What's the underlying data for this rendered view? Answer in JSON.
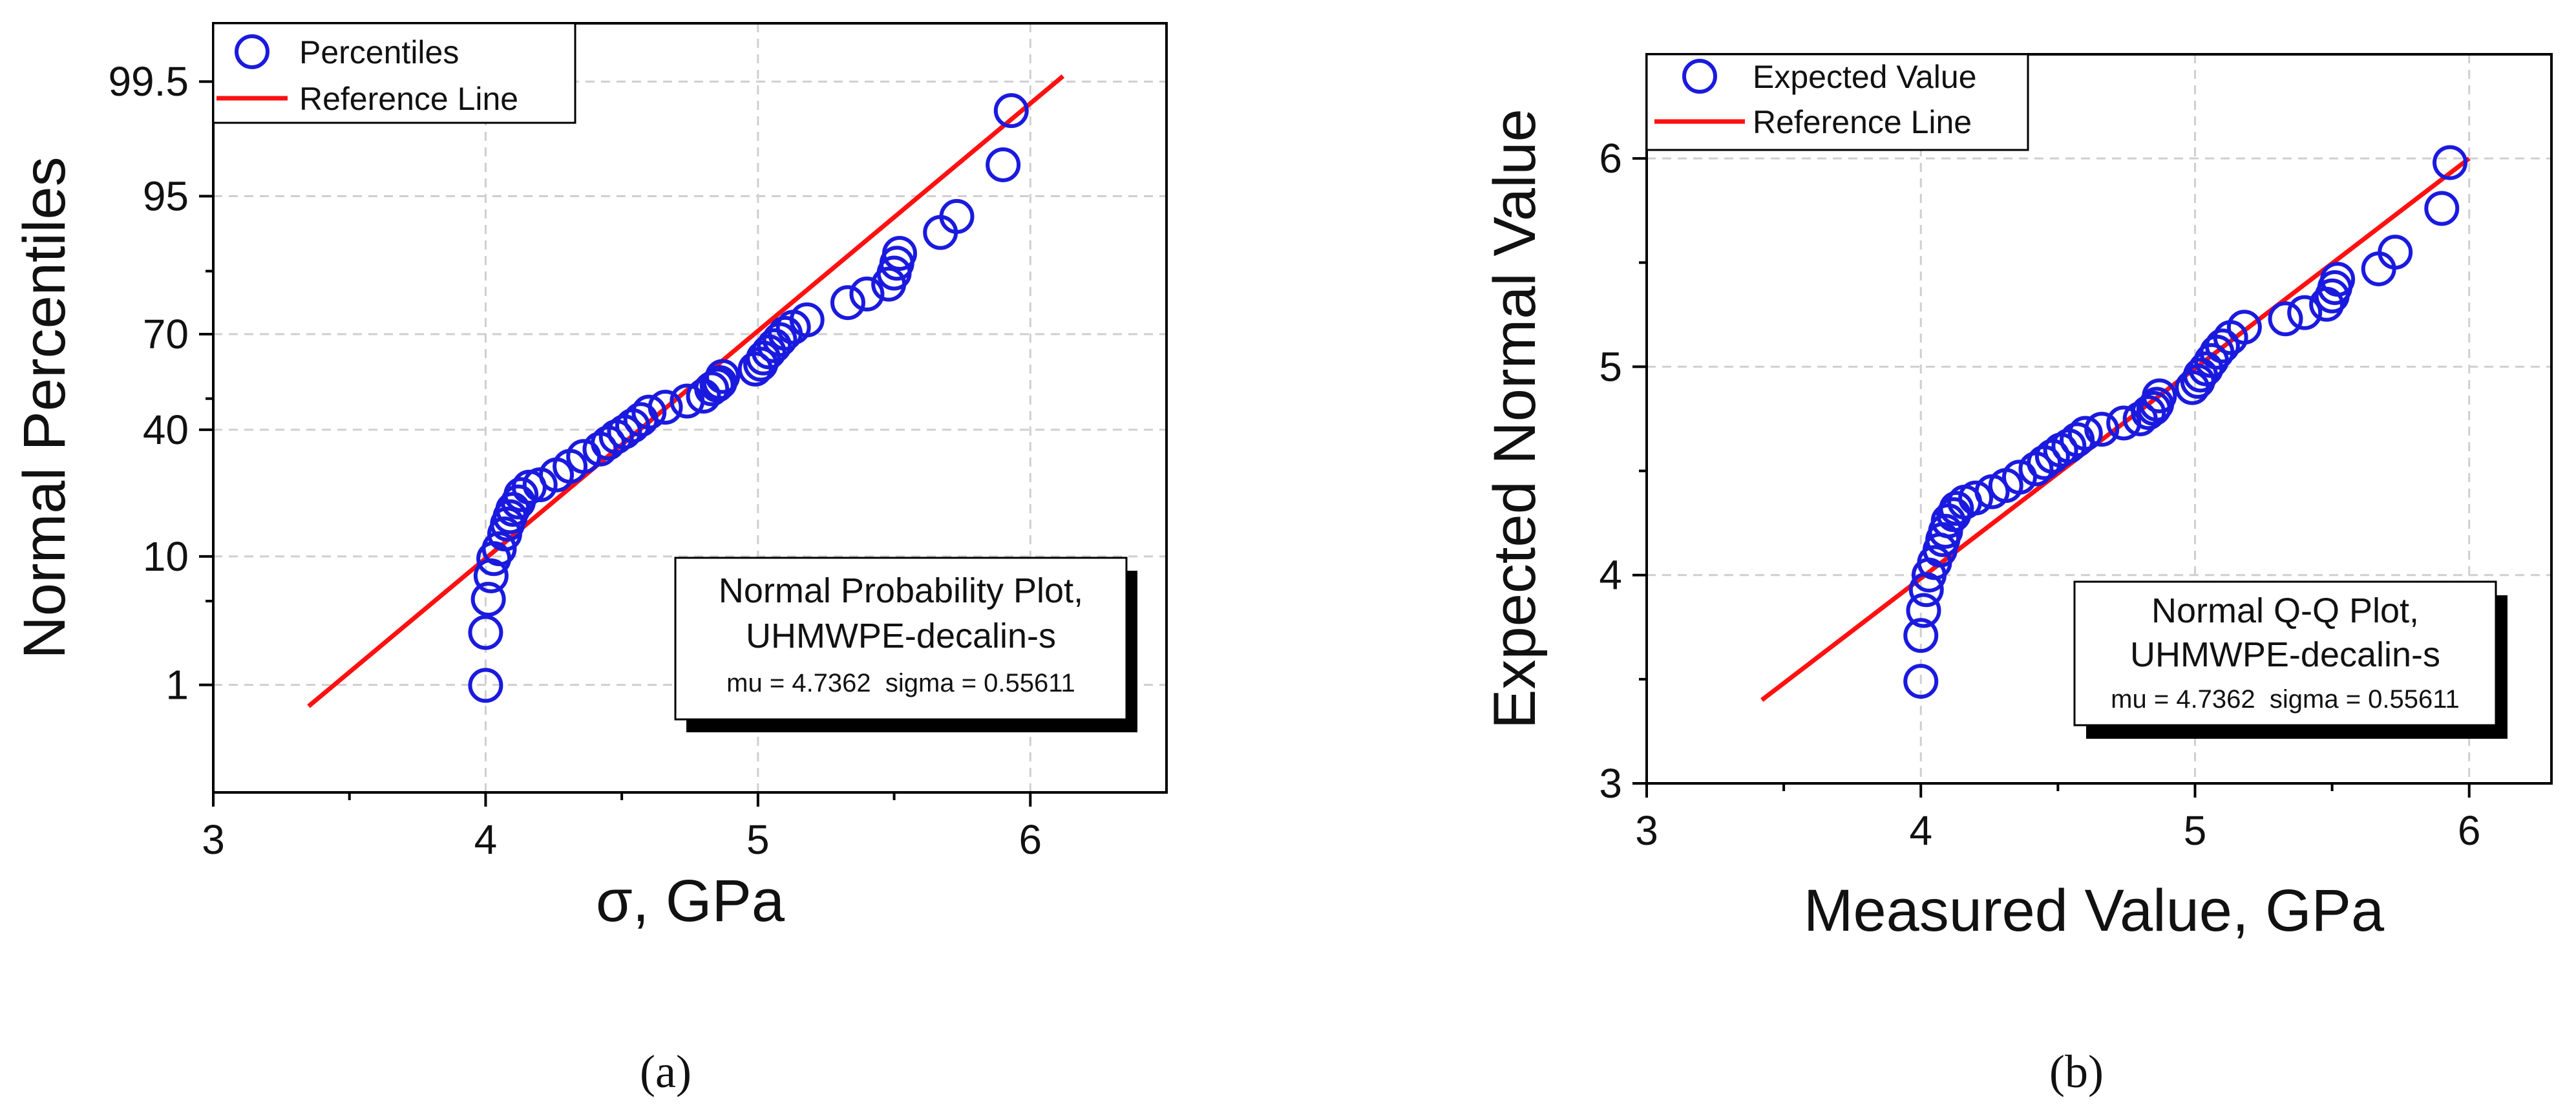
{
  "figure": {
    "panel_a_label": "(a)",
    "panel_b_label": "(b)"
  },
  "chart_data": [
    {
      "type": "scatter",
      "title": "Normal Probability Plot,",
      "subtitle": "UHMWPE-decalin-s",
      "stats": "mu = 4.7362  sigma = 0.55611",
      "xlabel": "σ, GPa",
      "ylabel": "Normal Percentiles",
      "xlim": [
        3,
        6.5
      ],
      "ylim_z": [
        -3.2,
        3.05
      ],
      "x_ticks": [
        3,
        4,
        5,
        6
      ],
      "x_tick_labels": [
        "3",
        "4",
        "5",
        "6"
      ],
      "y_ticks_z": [
        -2.326,
        -1.282,
        -0.253,
        0.524,
        1.645,
        2.576
      ],
      "y_tick_labels": [
        "1",
        "10",
        "40",
        "70",
        "95",
        "99.5"
      ],
      "grid": true,
      "legend": [
        {
          "label": "Percentiles",
          "marker": "circle",
          "color": "#1a1adf"
        },
        {
          "label": "Reference Line",
          "marker": "line",
          "color": "#ff1010"
        }
      ],
      "legend_position": "top-left",
      "series": [
        {
          "name": "Percentiles",
          "x": [
            4.0,
            4.0,
            4.01,
            4.02,
            4.03,
            4.05,
            4.07,
            4.08,
            4.09,
            4.1,
            4.12,
            4.13,
            4.16,
            4.2,
            4.26,
            4.31,
            4.36,
            4.42,
            4.45,
            4.48,
            4.51,
            4.54,
            4.57,
            4.6,
            4.66,
            4.74,
            4.8,
            4.83,
            4.85,
            4.86,
            4.87,
            4.99,
            5.01,
            5.02,
            5.04,
            5.06,
            5.08,
            5.1,
            5.13,
            5.18,
            5.33,
            5.4,
            5.48,
            5.5,
            5.51,
            5.52,
            5.67,
            5.73,
            5.9,
            5.93
          ],
          "z": [
            -2.33,
            -1.9,
            -1.63,
            -1.44,
            -1.3,
            -1.22,
            -1.1,
            -1.02,
            -0.96,
            -0.9,
            -0.84,
            -0.78,
            -0.72,
            -0.7,
            -0.62,
            -0.55,
            -0.47,
            -0.41,
            -0.36,
            -0.31,
            -0.27,
            -0.22,
            -0.17,
            -0.11,
            -0.07,
            -0.02,
            0.02,
            0.08,
            0.11,
            0.13,
            0.18,
            0.24,
            0.28,
            0.33,
            0.38,
            0.43,
            0.48,
            0.53,
            0.58,
            0.64,
            0.78,
            0.85,
            0.93,
            1.02,
            1.1,
            1.18,
            1.35,
            1.48,
            1.9,
            2.34
          ]
        },
        {
          "name": "Reference Line",
          "x": [
            3.35,
            6.12
          ],
          "z": [
            -2.5,
            2.62
          ]
        }
      ]
    },
    {
      "type": "scatter",
      "title": "Normal Q-Q Plot,",
      "subtitle": "UHMWPE-decalin-s",
      "stats": "mu = 4.7362  sigma = 0.55611",
      "xlabel": "Measured Value, GPa",
      "ylabel": "Expected Normal Value",
      "xlim": [
        3,
        6.3
      ],
      "ylim": [
        3,
        6.5
      ],
      "x_ticks": [
        3,
        4,
        5,
        6
      ],
      "x_tick_labels": [
        "3",
        "4",
        "5",
        "6"
      ],
      "y_ticks": [
        3,
        4,
        5,
        6
      ],
      "y_tick_labels": [
        "3",
        "4",
        "5",
        "6"
      ],
      "grid": true,
      "legend": [
        {
          "label": "Expected Value",
          "marker": "circle",
          "color": "#1a1adf"
        },
        {
          "label": "Reference Line",
          "marker": "line",
          "color": "#ff1010"
        }
      ],
      "legend_position": "top-left",
      "series": [
        {
          "name": "Expected Value",
          "x": [
            4.0,
            4.0,
            4.01,
            4.02,
            4.03,
            4.05,
            4.07,
            4.08,
            4.09,
            4.1,
            4.12,
            4.13,
            4.16,
            4.2,
            4.26,
            4.31,
            4.36,
            4.42,
            4.45,
            4.48,
            4.51,
            4.54,
            4.57,
            4.6,
            4.66,
            4.74,
            4.8,
            4.83,
            4.85,
            4.86,
            4.87,
            4.99,
            5.01,
            5.02,
            5.04,
            5.06,
            5.08,
            5.1,
            5.13,
            5.18,
            5.33,
            5.4,
            5.48,
            5.5,
            5.51,
            5.52,
            5.67,
            5.73,
            5.9,
            5.93
          ],
          "y": [
            3.49,
            3.71,
            3.83,
            3.93,
            4.0,
            4.06,
            4.12,
            4.17,
            4.21,
            4.26,
            4.29,
            4.32,
            4.35,
            4.37,
            4.4,
            4.43,
            4.47,
            4.51,
            4.54,
            4.57,
            4.6,
            4.62,
            4.65,
            4.68,
            4.7,
            4.73,
            4.75,
            4.78,
            4.8,
            4.82,
            4.86,
            4.9,
            4.93,
            4.96,
            4.99,
            5.03,
            5.07,
            5.1,
            5.14,
            5.19,
            5.23,
            5.26,
            5.3,
            5.34,
            5.38,
            5.42,
            5.47,
            5.55,
            5.76,
            5.98
          ]
        },
        {
          "name": "Reference Line",
          "x": [
            3.42,
            6.0
          ],
          "y": [
            3.4,
            6.0
          ]
        }
      ]
    }
  ]
}
